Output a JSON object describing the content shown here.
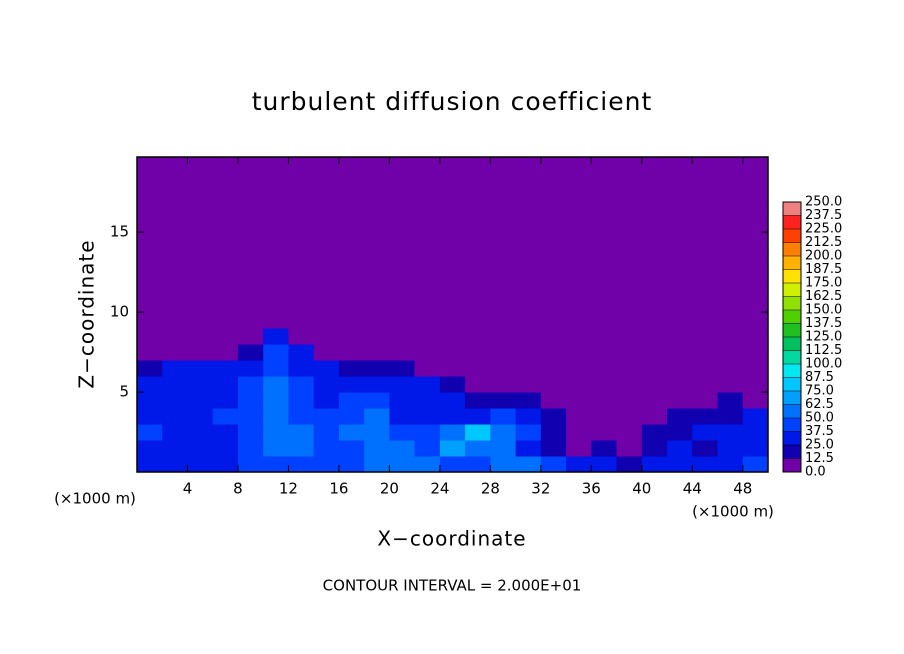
{
  "chart_data": {
    "type": "heatmap",
    "title": "turbulent diffusion coefficient",
    "x_label": "X−coordinate",
    "y_label": "Z−coordinate",
    "x_unit": "(×1000 m)",
    "x_unit_right": "(×1000 m)",
    "footer": "CONTOUR INTERVAL = 2.000E+01",
    "xlim": [
      0,
      50
    ],
    "ylim": [
      0,
      19.7
    ],
    "xticks": [
      4,
      8,
      12,
      16,
      20,
      24,
      28,
      32,
      36,
      40,
      44,
      48
    ],
    "yticks": [
      5,
      10,
      15
    ],
    "x": [
      1,
      3,
      5,
      7,
      9,
      11,
      13,
      15,
      17,
      19,
      21,
      23,
      25,
      27,
      29,
      31,
      33,
      35,
      37,
      39,
      41,
      43,
      45,
      47,
      49
    ],
    "z": [
      0.5,
      1.5,
      2.5,
      3.5,
      4.5,
      5.5,
      6.5,
      7.5,
      8.5,
      9.5
    ],
    "values": [
      [
        30,
        35,
        30,
        35,
        40,
        45,
        45,
        40,
        40,
        55,
        60,
        50,
        40,
        45,
        60,
        55,
        40,
        30,
        25,
        20,
        35,
        30,
        30,
        35,
        40
      ],
      [
        35,
        30,
        35,
        30,
        45,
        55,
        50,
        40,
        45,
        60,
        55,
        45,
        70,
        60,
        50,
        35,
        20,
        10,
        15,
        10,
        20,
        25,
        20,
        25,
        30
      ],
      [
        40,
        35,
        30,
        30,
        45,
        55,
        50,
        45,
        50,
        55,
        40,
        45,
        55,
        75,
        60,
        40,
        20,
        10,
        10,
        10,
        15,
        20,
        25,
        30,
        30
      ],
      [
        35,
        30,
        35,
        40,
        40,
        50,
        45,
        40,
        45,
        50,
        35,
        30,
        30,
        35,
        45,
        30,
        15,
        5,
        5,
        5,
        10,
        15,
        15,
        20,
        25
      ],
      [
        30,
        35,
        30,
        35,
        45,
        55,
        45,
        35,
        40,
        45,
        30,
        25,
        25,
        20,
        20,
        15,
        10,
        5,
        5,
        5,
        5,
        5,
        5,
        15,
        10
      ],
      [
        30,
        30,
        30,
        35,
        40,
        50,
        40,
        30,
        30,
        35,
        25,
        25,
        20,
        10,
        5,
        5,
        5,
        0,
        0,
        0,
        5,
        5,
        5,
        10,
        10
      ],
      [
        20,
        25,
        25,
        30,
        35,
        45,
        35,
        25,
        20,
        20,
        15,
        10,
        5,
        0,
        0,
        0,
        0,
        0,
        0,
        0,
        0,
        0,
        0,
        5,
        5
      ],
      [
        0,
        0,
        0,
        5,
        20,
        40,
        25,
        10,
        5,
        5,
        0,
        0,
        0,
        0,
        0,
        0,
        0,
        0,
        0,
        0,
        0,
        0,
        0,
        0,
        0
      ],
      [
        0,
        0,
        0,
        0,
        5,
        30,
        10,
        0,
        0,
        0,
        0,
        0,
        0,
        0,
        0,
        0,
        0,
        0,
        0,
        0,
        0,
        0,
        0,
        0,
        0
      ],
      [
        0,
        0,
        0,
        0,
        0,
        10,
        0,
        0,
        0,
        0,
        0,
        0,
        0,
        0,
        0,
        0,
        0,
        0,
        0,
        0,
        0,
        0,
        0,
        0,
        0
      ]
    ],
    "levels": [
      {
        "value": 0,
        "label": "0.0"
      },
      12.5,
      {
        "value": 25,
        "label": "25.0"
      },
      37.5,
      {
        "value": 50,
        "label": "50.0"
      },
      62.5,
      {
        "value": 75,
        "label": "75.0"
      },
      87.5,
      {
        "value": 100,
        "label": "100.0"
      },
      112.5,
      {
        "value": 125,
        "label": "125.0"
      },
      137.5,
      {
        "value": 150,
        "label": "150.0"
      },
      162.5,
      {
        "value": 175,
        "label": "175.0"
      },
      187.5,
      {
        "value": 200,
        "label": "200.0"
      },
      212.5,
      {
        "value": 225,
        "label": "225.0"
      },
      237.5,
      {
        "value": 250,
        "label": "250.0"
      }
    ],
    "colors": [
      "#7000a8",
      "#1000b0",
      "#0018e8",
      "#0040ff",
      "#0070ff",
      "#00a0ff",
      "#00c8ff",
      "#00e8f0",
      "#00d8a0",
      "#00c060",
      "#20c020",
      "#50d000",
      "#90e000",
      "#d0f000",
      "#ffe000",
      "#ffb000",
      "#ff8000",
      "#ff4000",
      "#ff2020",
      "#f08080"
    ]
  }
}
